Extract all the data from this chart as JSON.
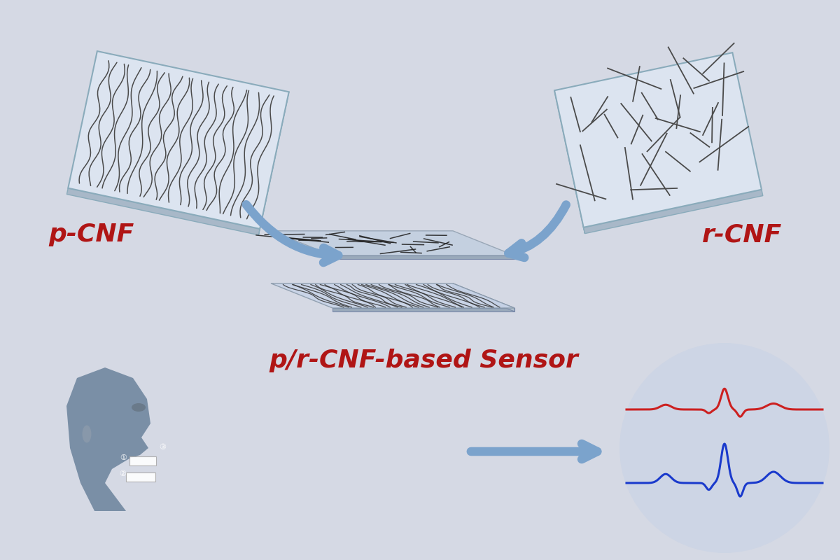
{
  "bg_color": "#d5d9e4",
  "title_color": "#b01515",
  "fiber_color": "#4a4a4a",
  "membrane_face_color": "#dce4f0",
  "membrane_edge_color": "#aabbcc",
  "arrow_color": "#7ba3cc",
  "pcnf_label": "p-CNF",
  "rcnf_label": "r-CNF",
  "sensor_label": "p/r-CNF-based Sensor",
  "label_fontsize": 26,
  "sensor_fontsize": 26,
  "head_color": "#7a8fa6",
  "circle_color": "#cdd5e5",
  "red_line_color": "#cc2020",
  "blue_line_color": "#1a3acc"
}
